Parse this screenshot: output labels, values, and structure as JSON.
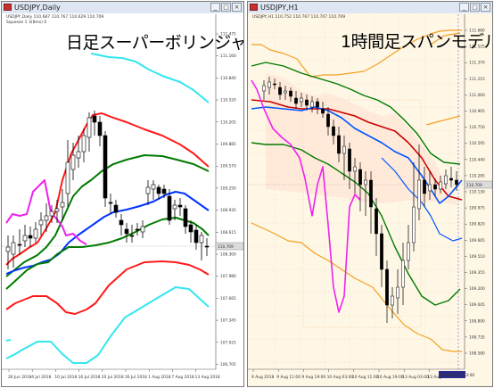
{
  "left": {
    "title": "USDJPY,Daily",
    "info_line1": "USDJPY,Daily  110.687 110.767 110.629 110.709",
    "info_line2": "Squeeze 1 3(8ms) 0",
    "heading": "日足スーパーボリンジャー",
    "price_label": "110.709",
    "y_ticks": [
      "111.475",
      "111.160",
      "110.840",
      "110.520",
      "110.205",
      "109.885",
      "109.570",
      "109.250",
      "108.935",
      "108.615",
      "108.300",
      "107.980",
      "107.665",
      "107.345",
      "107.025",
      "106.705"
    ],
    "x_ticks": [
      "26 Jun 2018",
      "4 Jul 2018",
      "10 Jul 2018",
      "16 Jul 2018",
      "20 Jul 2018",
      "26 Jul 2018",
      "1 Aug 2018",
      "7 Aug 2018",
      "13 Aug 2018"
    ]
  },
  "right": {
    "title": "USDJPY,H1",
    "info_line1": "USDJPY,H1  110.752 110.767 110.707 110.709",
    "heading": "1時間足スパンモデル",
    "price_label": "110.709",
    "time_label": "2018.08.13 13:00",
    "y_ticks": [
      "111.680",
      "111.525",
      "111.370",
      "111.215",
      "111.060",
      "110.905",
      "110.750",
      "110.595",
      "110.440",
      "110.285",
      "110.130",
      "109.975",
      "109.820",
      "109.665",
      "109.510",
      "109.355",
      "109.200",
      "109.045",
      "108.890",
      "108.735",
      "108.580"
    ],
    "x_ticks": [
      "9 Aug 2018",
      "9 Aug 11:00",
      "9 Aug 19:00",
      "10 Aug 03:00",
      "10 Aug 11:00",
      "10 Aug 19:00",
      "13 Aug 03:00",
      "13 Aug 11:00"
    ]
  },
  "colors": {
    "bb3": "#33e6ee",
    "bb2": "#ff1a1a",
    "bb1": "#007a00",
    "mid": "#0033ff",
    "chikou": "#ee22ee",
    "candle": "#000000",
    "span_upper": "#f2a020",
    "red_line": "#cc0000",
    "blue_line": "#0055ff",
    "green_line": "#007a00",
    "chikou_r": "#ee22ee"
  }
}
